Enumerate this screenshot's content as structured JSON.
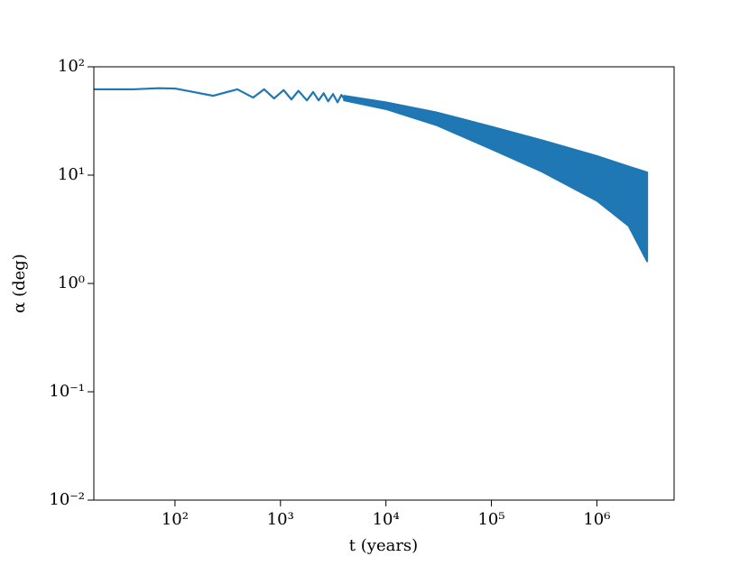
{
  "chart_data": {
    "type": "line",
    "xlabel": "t (years)",
    "ylabel": "α (deg)",
    "xscale": "log",
    "yscale": "log",
    "color": "#1f77b4",
    "xlim": [
      17,
      5400000
    ],
    "ylim": [
      0.01,
      100
    ],
    "xticks": [
      {
        "value": 100,
        "label": "10²"
      },
      {
        "value": 1000,
        "label": "10³"
      },
      {
        "value": 10000,
        "label": "10⁴"
      },
      {
        "value": 100000,
        "label": "10⁵"
      },
      {
        "value": 1000000,
        "label": "10⁶"
      }
    ],
    "yticks": [
      {
        "value": 0.01,
        "label": "10⁻²"
      },
      {
        "value": 0.1,
        "label": "10⁻¹"
      },
      {
        "value": 1,
        "label": "10⁰"
      },
      {
        "value": 10,
        "label": "10¹"
      },
      {
        "value": 100,
        "label": "10²"
      }
    ],
    "series": [
      {
        "x": [
          17,
          40,
          70,
          100,
          150,
          230,
          390,
          550,
          700,
          870,
          1070,
          1270,
          1480,
          1780,
          2040,
          2300,
          2570,
          2830,
          3150,
          3480,
          3780,
          4000
        ],
        "values": [
          62,
          62,
          63.5,
          63,
          58.5,
          54,
          62,
          52,
          62,
          51,
          61,
          50,
          60,
          49,
          58.5,
          49,
          57,
          48,
          56,
          47,
          55,
          51
        ]
      }
    ],
    "band": {
      "x": [
        4000,
        10000,
        30000,
        100000,
        300000,
        1000000,
        2000000,
        3000000
      ],
      "upper": [
        54,
        47,
        38,
        28,
        21,
        15,
        12,
        10.6
      ],
      "lower": [
        49,
        40.7,
        29,
        17.4,
        10.8,
        5.8,
        3.4,
        1.6
      ]
    }
  }
}
